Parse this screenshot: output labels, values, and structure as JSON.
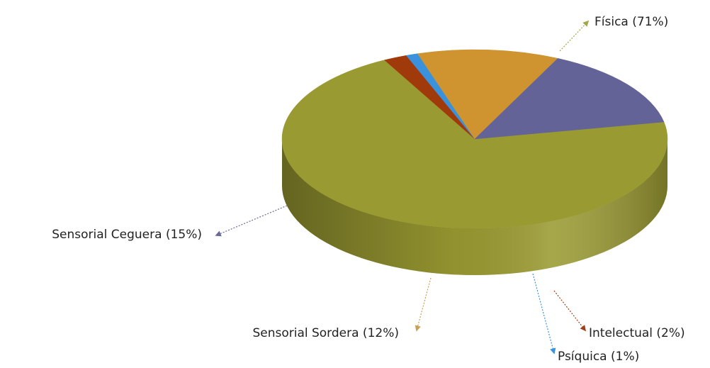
{
  "chart_data": {
    "type": "pie",
    "style": "3d",
    "title": "",
    "slices": [
      {
        "label": "Física (71%)",
        "category": "Física",
        "value": 71,
        "color": "#9a9a32",
        "leader_color": "#a3a64a"
      },
      {
        "label": "Intelectual (2%)",
        "category": "Intelectual",
        "value": 2,
        "color": "#a03a0a",
        "leader_color": "#a0401a"
      },
      {
        "label": "Psíquica (1%)",
        "category": "Psíquica",
        "value": 1,
        "color": "#3a92dc",
        "leader_color": "#3a92dc"
      },
      {
        "label": "Sensorial Sordera (12%)",
        "category": "Sensorial Sordera",
        "value": 12,
        "color": "#cf9330",
        "leader_color": "#c9a055"
      },
      {
        "label": "Sensorial Ceguera (15%)",
        "category": "Sensorial Ceguera",
        "value": 15,
        "color": "#636398",
        "leader_color": "#6a6a9a"
      }
    ],
    "legend": "none",
    "labels": "outside-with-leader-lines"
  }
}
